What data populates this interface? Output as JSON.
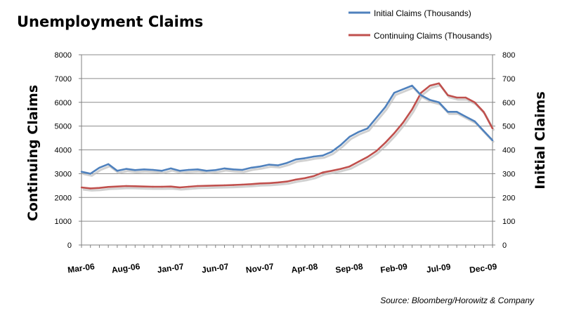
{
  "chart_data": {
    "type": "line",
    "title": "Unemployment Claims",
    "ylabel_left": "Continuing Claims",
    "ylabel_right": "Initial Claims",
    "source": "Source: Bloomberg/Horowitz & Company",
    "x_tick_labels": [
      "Mar-06",
      "Aug-06",
      "Jan-07",
      "Jun-07",
      "Nov-07",
      "Apr-08",
      "Sep-08",
      "Feb-09",
      "Jul-09",
      "Dec-09"
    ],
    "x_tick_indices": [
      0,
      5,
      10,
      15,
      20,
      25,
      30,
      35,
      40,
      45
    ],
    "x_points": [
      "Mar-06",
      "Apr-06",
      "May-06",
      "Jun-06",
      "Jul-06",
      "Aug-06",
      "Sep-06",
      "Oct-06",
      "Nov-06",
      "Dec-06",
      "Jan-07",
      "Feb-07",
      "Mar-07",
      "Apr-07",
      "May-07",
      "Jun-07",
      "Jul-07",
      "Aug-07",
      "Sep-07",
      "Oct-07",
      "Nov-07",
      "Dec-07",
      "Jan-08",
      "Feb-08",
      "Mar-08",
      "Apr-08",
      "May-08",
      "Jun-08",
      "Jul-08",
      "Aug-08",
      "Sep-08",
      "Oct-08",
      "Nov-08",
      "Dec-08",
      "Jan-09",
      "Feb-09",
      "Mar-09",
      "Apr-09",
      "May-09",
      "Jun-09",
      "Jul-09",
      "Aug-09",
      "Sep-09",
      "Oct-09",
      "Nov-09",
      "Dec-09",
      "Jan-10"
    ],
    "yaxis_left": {
      "min": 0,
      "max": 8000,
      "step": 1000,
      "ticks": [
        "0",
        "1000",
        "2000",
        "3000",
        "4000",
        "5000",
        "6000",
        "7000",
        "8000"
      ]
    },
    "yaxis_right": {
      "min": 0,
      "max": 800,
      "step": 100,
      "ticks": [
        "0",
        "100",
        "200",
        "300",
        "400",
        "500",
        "600",
        "700",
        "800"
      ]
    },
    "grid": "horizontal",
    "legend_position": "top-right",
    "series": [
      {
        "name": "Initial Claims (Thousands)",
        "axis": "right",
        "color": "#4f81bd",
        "values": [
          308,
          300,
          325,
          340,
          312,
          320,
          315,
          318,
          316,
          312,
          322,
          312,
          316,
          318,
          312,
          315,
          322,
          318,
          316,
          325,
          330,
          338,
          335,
          345,
          360,
          365,
          372,
          376,
          392,
          420,
          455,
          475,
          490,
          535,
          580,
          640,
          655,
          670,
          630,
          610,
          600,
          560,
          560,
          540,
          520,
          480,
          440
        ]
      },
      {
        "name": "Continuing Claims (Thousands)",
        "axis": "left",
        "color": "#c0504d",
        "values": [
          2420,
          2380,
          2400,
          2440,
          2460,
          2480,
          2470,
          2460,
          2450,
          2450,
          2460,
          2420,
          2450,
          2480,
          2490,
          2500,
          2510,
          2520,
          2540,
          2560,
          2590,
          2600,
          2630,
          2670,
          2750,
          2810,
          2900,
          3050,
          3120,
          3200,
          3300,
          3500,
          3700,
          3950,
          4300,
          4700,
          5150,
          5700,
          6400,
          6700,
          6800,
          6300,
          6200,
          6200,
          6000,
          5600,
          4900
        ]
      }
    ]
  }
}
